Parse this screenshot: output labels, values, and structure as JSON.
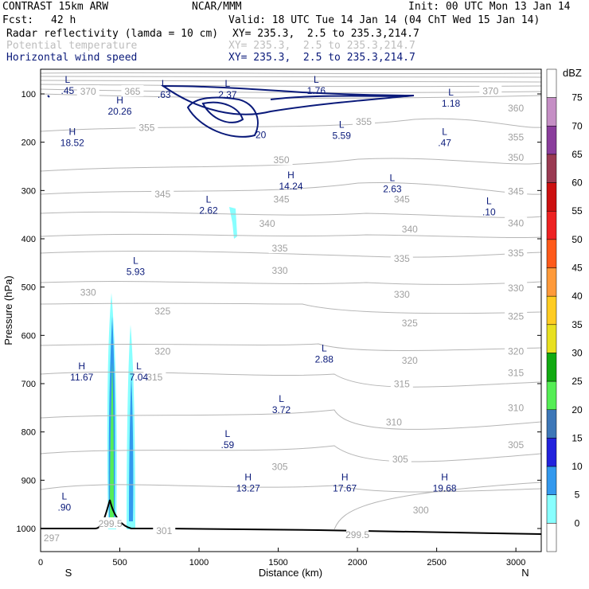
{
  "header": {
    "model": "CONTRAST 15km ARW",
    "center": "NCAR/MMM",
    "init": "Init: 00 UTC Mon 13 Jan 14",
    "fcst_label": "Fcst:",
    "fcst_value": "42 h",
    "valid": "Valid: 18 UTC Tue 14 Jan 14 (04 ChT Wed 15 Jan 14)",
    "fields": [
      {
        "name": "Radar reflectivity (lamda = 10 cm)",
        "xy": "XY= 235.3,  2.5 to 235.3,214.7",
        "color": "#000000"
      },
      {
        "name": "Potential temperature",
        "xy": "XY= 235.3,  2.5 to 235.3,214.7",
        "color": "#bdbdbd"
      },
      {
        "name": "Horizontal wind speed",
        "xy": "XY= 235.3,  2.5 to 235.3,214.7",
        "color": "#0a1a7a"
      }
    ]
  },
  "chart_data": {
    "type": "cross-section",
    "title": "",
    "xlabel": "Distance (km)",
    "ylabel": "Pressure (hPa)",
    "xlim": [
      0,
      3200
    ],
    "ylim": [
      1030,
      65
    ],
    "x_ticks": [
      0,
      500,
      1000,
      1500,
      2000,
      2500,
      3000
    ],
    "y_ticks": [
      100,
      200,
      300,
      400,
      500,
      600,
      700,
      800,
      900,
      1000
    ],
    "x_end_labels": {
      "left": "S",
      "right": "N"
    },
    "colorbar": {
      "unit": "dBZ",
      "levels": [
        75,
        70,
        65,
        60,
        55,
        50,
        45,
        40,
        35,
        30,
        25,
        20,
        15,
        10,
        5,
        0
      ],
      "colors": [
        "#ffffff",
        "#c58fc5",
        "#8a3d9c",
        "#9a3a52",
        "#cc1010",
        "#ee2222",
        "#ff5a1a",
        "#ff9a3a",
        "#ffcc22",
        "#e8e020",
        "#11aa11",
        "#55ee55",
        "#3d77b8",
        "#2222dd",
        "#3399ee",
        "#88ffff",
        "#ffffff"
      ]
    },
    "theta_labels": [
      {
        "value": "370",
        "x": 300,
        "p": 95
      },
      {
        "value": "365",
        "x": 580,
        "p": 95
      },
      {
        "value": "370",
        "x": 2840,
        "p": 94
      },
      {
        "value": "360",
        "x": 3000,
        "p": 130
      },
      {
        "value": "355",
        "x": 670,
        "p": 170
      },
      {
        "value": "355",
        "x": 2040,
        "p": 158
      },
      {
        "value": "355",
        "x": 3000,
        "p": 190
      },
      {
        "value": "350",
        "x": 1520,
        "p": 237
      },
      {
        "value": "350",
        "x": 3000,
        "p": 232
      },
      {
        "value": "345",
        "x": 770,
        "p": 308
      },
      {
        "value": "345",
        "x": 1520,
        "p": 318
      },
      {
        "value": "345",
        "x": 2280,
        "p": 318
      },
      {
        "value": "345",
        "x": 3000,
        "p": 302
      },
      {
        "value": "340",
        "x": 1430,
        "p": 369
      },
      {
        "value": "340",
        "x": 2330,
        "p": 380
      },
      {
        "value": "340",
        "x": 3000,
        "p": 368
      },
      {
        "value": "335",
        "x": 1510,
        "p": 420
      },
      {
        "value": "335",
        "x": 2280,
        "p": 441
      },
      {
        "value": "335",
        "x": 3000,
        "p": 430
      },
      {
        "value": "330",
        "x": 1510,
        "p": 466
      },
      {
        "value": "330",
        "x": 300,
        "p": 511
      },
      {
        "value": "330",
        "x": 2280,
        "p": 515
      },
      {
        "value": "330",
        "x": 3000,
        "p": 502
      },
      {
        "value": "325",
        "x": 770,
        "p": 550
      },
      {
        "value": "325",
        "x": 2330,
        "p": 575
      },
      {
        "value": "325",
        "x": 3000,
        "p": 561
      },
      {
        "value": "320",
        "x": 770,
        "p": 633
      },
      {
        "value": "320",
        "x": 2330,
        "p": 652
      },
      {
        "value": "320",
        "x": 3000,
        "p": 633
      },
      {
        "value": "315",
        "x": 720,
        "p": 687
      },
      {
        "value": "315",
        "x": 2280,
        "p": 701
      },
      {
        "value": "315",
        "x": 3000,
        "p": 678
      },
      {
        "value": "310",
        "x": 2230,
        "p": 780
      },
      {
        "value": "310",
        "x": 3000,
        "p": 750
      },
      {
        "value": "305",
        "x": 1510,
        "p": 872
      },
      {
        "value": "305",
        "x": 2270,
        "p": 857
      },
      {
        "value": "305",
        "x": 3000,
        "p": 827
      },
      {
        "value": "300",
        "x": 2400,
        "p": 962
      },
      {
        "value": "299.5",
        "x": 2000,
        "p": 1013
      },
      {
        "value": "299.5",
        "x": 440,
        "p": 990
      },
      {
        "value": "301",
        "x": 780,
        "p": 1005
      },
      {
        "value": "297",
        "x": 70,
        "p": 1020
      }
    ],
    "extrema": [
      {
        "type": "L",
        "value": ".45",
        "x": 170,
        "p": 87
      },
      {
        "type": "L",
        "value": ".63",
        "x": 780,
        "p": 95
      },
      {
        "type": "L",
        "value": "2.37",
        "x": 1180,
        "p": 95
      },
      {
        "type": "L",
        "value": "1.76",
        "x": 1740,
        "p": 87
      },
      {
        "type": "L",
        "value": "1.18",
        "x": 2590,
        "p": 113
      },
      {
        "type": "H",
        "value": "20.26",
        "x": 500,
        "p": 130
      },
      {
        "type": "H",
        "value": "18.52",
        "x": 200,
        "p": 195
      },
      {
        "type": "L",
        "value": "5.59",
        "x": 1900,
        "p": 180
      },
      {
        "type": "L",
        "value": ".47",
        "x": 2550,
        "p": 195
      },
      {
        "type": "H",
        "value": "14.24",
        "x": 1580,
        "p": 285
      },
      {
        "type": "L",
        "value": "2.62",
        "x": 1060,
        "p": 335
      },
      {
        "type": "L",
        "value": "2.63",
        "x": 2220,
        "p": 290
      },
      {
        "type": "L",
        "value": ".10",
        "x": 2830,
        "p": 338
      },
      {
        "type": "L",
        "value": "5.93",
        "x": 600,
        "p": 462
      },
      {
        "type": "L",
        "value": "2.88",
        "x": 1790,
        "p": 643
      },
      {
        "type": "H",
        "value": "11.67",
        "x": 260,
        "p": 680
      },
      {
        "type": "L",
        "value": "7.04",
        "x": 620,
        "p": 680
      },
      {
        "type": "L",
        "value": "3.72",
        "x": 1520,
        "p": 748
      },
      {
        "type": "L",
        "value": ".59",
        "x": 1180,
        "p": 820
      },
      {
        "type": "H",
        "value": "13.27",
        "x": 1310,
        "p": 910
      },
      {
        "type": "H",
        "value": "17.67",
        "x": 1920,
        "p": 910
      },
      {
        "type": "H",
        "value": "19.68",
        "x": 2550,
        "p": 910
      },
      {
        "type": "L",
        "value": ".90",
        "x": 150,
        "p": 950
      }
    ],
    "wind_label": {
      "value": "20",
      "x": 1390,
      "p": 185
    }
  }
}
